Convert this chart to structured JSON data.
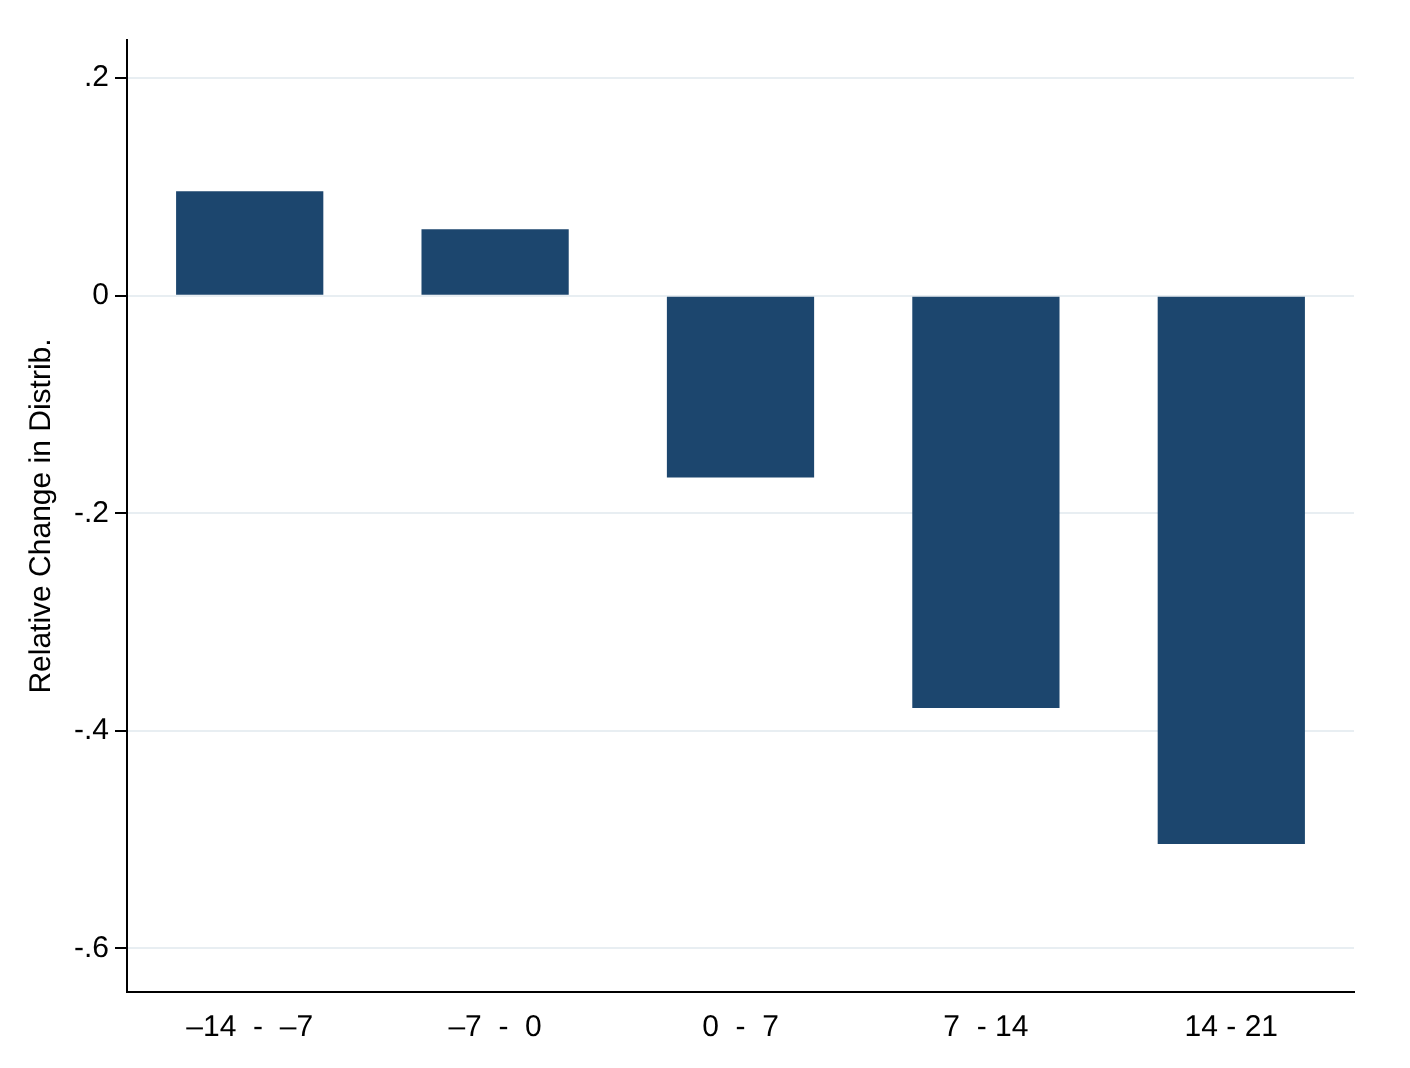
{
  "chart_data": {
    "type": "bar",
    "ylabel": "Relative Change in Distrib.",
    "categories": [
      "–14  -  –7",
      "–7  -  0",
      "0  -  7",
      "7  - 14",
      "14 - 21"
    ],
    "values": [
      0.096,
      0.061,
      -0.167,
      -0.379,
      -0.504
    ],
    "color": "#1c466e",
    "ylim": [
      -0.64,
      0.235
    ],
    "yticks": [
      {
        "value": 0.2,
        "label": ".2"
      },
      {
        "value": 0,
        "label": "0"
      },
      {
        "value": -0.2,
        "label": "-.2"
      },
      {
        "value": -0.4,
        "label": "-.4"
      },
      {
        "value": -0.6,
        "label": "-.6"
      }
    ],
    "grid": "y",
    "legend": false
  }
}
